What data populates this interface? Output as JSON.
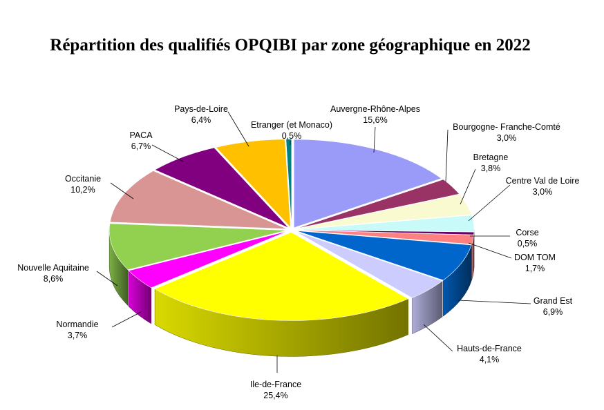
{
  "chart_data": {
    "type": "pie",
    "title": "Répartition des qualifiés OPQIBI par zone géographique en 2022",
    "slices": [
      {
        "name": "Auvergne-Rhône-Alpes",
        "label": "15,6%",
        "value": 15.6,
        "color": "#9a9af8"
      },
      {
        "name": "Bourgogne- Franche-Comté",
        "label": "3,0%",
        "value": 3.0,
        "color": "#993366"
      },
      {
        "name": "Bretagne",
        "label": "3,8%",
        "value": 3.8,
        "color": "#fafad0"
      },
      {
        "name": "Centre Val de Loire",
        "label": "3,0%",
        "value": 3.0,
        "color": "#c8fafa"
      },
      {
        "name": "Corse",
        "label": "0,5%",
        "value": 0.5,
        "color": "#660066"
      },
      {
        "name": "DOM TOM",
        "label": "1,7%",
        "value": 1.7,
        "color": "#ff8080"
      },
      {
        "name": "Grand Est",
        "label": "6,9%",
        "value": 6.9,
        "color": "#0066cc"
      },
      {
        "name": "Hauts-de-France",
        "label": "4,1%",
        "value": 4.1,
        "color": "#ccccff"
      },
      {
        "name": "Ile-de-France",
        "label": "25,4%",
        "value": 25.4,
        "color": "#ffff00"
      },
      {
        "name": "Normandie",
        "label": "3,7%",
        "value": 3.7,
        "color": "#ff00ff"
      },
      {
        "name": "Nouvelle Aquitaine",
        "label": "8,6%",
        "value": 8.6,
        "color": "#92d050"
      },
      {
        "name": "Occitanie",
        "label": "10,2%",
        "value": 10.2,
        "color": "#d99594"
      },
      {
        "name": "PACA",
        "label": "6,7%",
        "value": 6.7,
        "color": "#800080"
      },
      {
        "name": "Pays-de-Loire",
        "label": "6,4%",
        "value": 6.4,
        "color": "#ffc000"
      },
      {
        "name": "Etranger (et Monaco)",
        "label": "0,5%",
        "value": 0.5,
        "color": "#008080"
      }
    ],
    "legend": "none",
    "style": "3d-exploded-pie"
  }
}
